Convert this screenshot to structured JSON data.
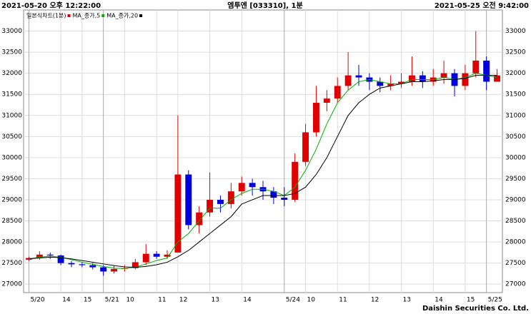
{
  "chart_data": {
    "type": "candlestick",
    "title": "엠투엔 [033310], 1분",
    "start_label": "2021-05-20 오후 12:22:00",
    "end_label": "2021-05-25 오전 9:42:00",
    "footer": "Daishin Securities Co. Ltd.",
    "candle_name": "일본식차트(1분)",
    "up_color": "#e00000",
    "down_color": "#0000e0",
    "categories": [
      "5/20",
      null,
      null,
      "14",
      null,
      "15",
      null,
      "5/21",
      null,
      "10",
      null,
      null,
      "11",
      null,
      "12",
      null,
      null,
      "13",
      null,
      null,
      "14",
      null,
      null,
      null,
      "5/24",
      null,
      "10",
      null,
      null,
      "11",
      null,
      null,
      "12",
      null,
      null,
      "13",
      null,
      null,
      "14",
      null,
      null,
      "15",
      null,
      "5/25",
      null
    ],
    "open": [
      27580,
      27620,
      27700,
      27680,
      27500,
      27470,
      27450,
      27400,
      27300,
      27360,
      27380,
      27520,
      27720,
      27650,
      27750,
      29600,
      28400,
      28700,
      29000,
      28900,
      29200,
      29400,
      29300,
      29200,
      29050,
      29000,
      29900,
      30600,
      31300,
      31400,
      31700,
      31950,
      31900,
      31800,
      31700,
      31750,
      31800,
      31950,
      31800,
      31900,
      32000,
      31700,
      32000,
      32300,
      31800
    ],
    "high": [
      27650,
      27780,
      27750,
      27700,
      27550,
      27520,
      27500,
      27450,
      27450,
      27450,
      27600,
      27950,
      27780,
      27800,
      31000,
      29700,
      28850,
      29650,
      29100,
      29400,
      29550,
      29500,
      29450,
      29300,
      29300,
      30100,
      30800,
      31700,
      31600,
      31900,
      32500,
      32200,
      32000,
      31900,
      31950,
      32000,
      32400,
      32050,
      32100,
      32300,
      32100,
      32200,
      33000,
      32400,
      32100
    ],
    "low": [
      27550,
      27580,
      27600,
      27450,
      27400,
      27400,
      27350,
      27200,
      27250,
      27300,
      27350,
      27450,
      27600,
      27600,
      27750,
      28300,
      28200,
      28600,
      28700,
      28800,
      29100,
      29100,
      29000,
      28900,
      28850,
      28950,
      29800,
      30500,
      31100,
      31300,
      31600,
      31700,
      31600,
      31550,
      31600,
      31650,
      31700,
      31650,
      31700,
      31750,
      31450,
      31600,
      31900,
      31600,
      31800
    ],
    "close": [
      27620,
      27700,
      27680,
      27500,
      27470,
      27450,
      27400,
      27300,
      27360,
      27380,
      27520,
      27720,
      27650,
      27700,
      29600,
      28400,
      28700,
      29000,
      28900,
      29200,
      29400,
      29300,
      29200,
      29050,
      29000,
      29900,
      30600,
      31300,
      31400,
      31700,
      31950,
      31900,
      31800,
      31700,
      31750,
      31800,
      31950,
      31800,
      31900,
      32000,
      31700,
      32000,
      32300,
      31800,
      31950
    ],
    "series": [
      {
        "name": "MA_종가,5",
        "color": "#00b000",
        "values": [
          27600,
          27640,
          27660,
          27640,
          27580,
          27520,
          27470,
          27420,
          27380,
          27370,
          27400,
          27480,
          27560,
          27620,
          28000,
          28200,
          28500,
          28800,
          28800,
          29000,
          29150,
          29250,
          29250,
          29200,
          29100,
          29300,
          29700,
          30200,
          30800,
          31300,
          31600,
          31800,
          31850,
          31800,
          31750,
          31750,
          31850,
          31850,
          31850,
          31900,
          31850,
          31900,
          32000,
          31950,
          31900
        ]
      },
      {
        "name": "MA_종가,20",
        "color": "#000000",
        "values": [
          27600,
          27620,
          27640,
          27630,
          27600,
          27560,
          27520,
          27480,
          27440,
          27410,
          27400,
          27420,
          27460,
          27520,
          27650,
          27800,
          28000,
          28200,
          28400,
          28600,
          28900,
          29000,
          29100,
          29100,
          29100,
          29150,
          29300,
          29600,
          30000,
          30500,
          31000,
          31300,
          31500,
          31650,
          31700,
          31750,
          31800,
          31800,
          31820,
          31850,
          31850,
          31880,
          31950,
          31950,
          31950
        ]
      }
    ],
    "ylim": [
      26800,
      33500
    ],
    "yticks": [
      27000,
      27500,
      28000,
      28500,
      29000,
      29500,
      30000,
      30500,
      31000,
      31500,
      32000,
      32500,
      33000
    ],
    "grid": true
  }
}
